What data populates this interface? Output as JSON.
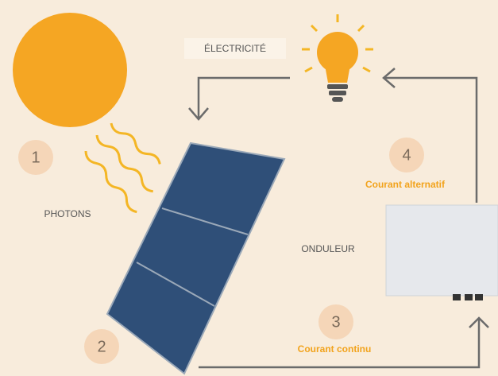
{
  "labels": {
    "electricity": "ÉLECTRICITÉ",
    "photons": "PHOTONS",
    "inverter": "ONDULEUR"
  },
  "steps": [
    {
      "number": 1
    },
    {
      "number": 2
    },
    {
      "number": 3,
      "label": "Courant continu"
    },
    {
      "number": 4,
      "label": "Courant alternatif"
    }
  ]
}
